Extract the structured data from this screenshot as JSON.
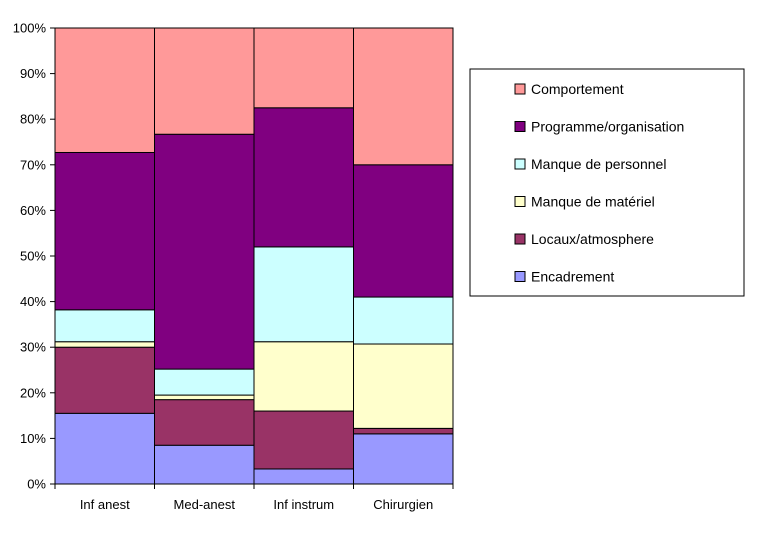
{
  "chart_data": {
    "type": "bar",
    "stacked": true,
    "normalized_percent": true,
    "categories": [
      "Inf anest",
      "Med-anest",
      "Inf instrum",
      "Chirurgien"
    ],
    "series": [
      {
        "name": "Encadrement",
        "color": "#9999ff",
        "values": [
          15.5,
          8.5,
          3.3,
          11.0
        ]
      },
      {
        "name": "Locaux/atmosphere",
        "color": "#993366",
        "values": [
          14.5,
          10.0,
          12.7,
          1.2
        ]
      },
      {
        "name": "Manque de matériel",
        "color": "#ffffcc",
        "values": [
          1.2,
          1.0,
          15.2,
          18.5
        ]
      },
      {
        "name": "Manque de personnel",
        "color": "#ccffff",
        "values": [
          7.0,
          5.7,
          20.8,
          10.3
        ]
      },
      {
        "name": "Programme/organisation",
        "color": "#800080",
        "values": [
          34.5,
          51.5,
          30.5,
          29.0
        ]
      },
      {
        "name": "Comportement",
        "color": "#ff9999",
        "values": [
          27.3,
          23.3,
          17.5,
          30.0
        ]
      }
    ],
    "ylim": [
      0,
      100
    ],
    "yticks": [
      "0%",
      "10%",
      "20%",
      "30%",
      "40%",
      "50%",
      "60%",
      "70%",
      "80%",
      "90%",
      "100%"
    ],
    "legend": {
      "placement": "right",
      "order": [
        "Comportement",
        "Programme/organisation",
        "Manque de personnel",
        "Manque de matériel",
        "Locaux/atmosphere",
        "Encadrement"
      ]
    },
    "grid": false
  }
}
